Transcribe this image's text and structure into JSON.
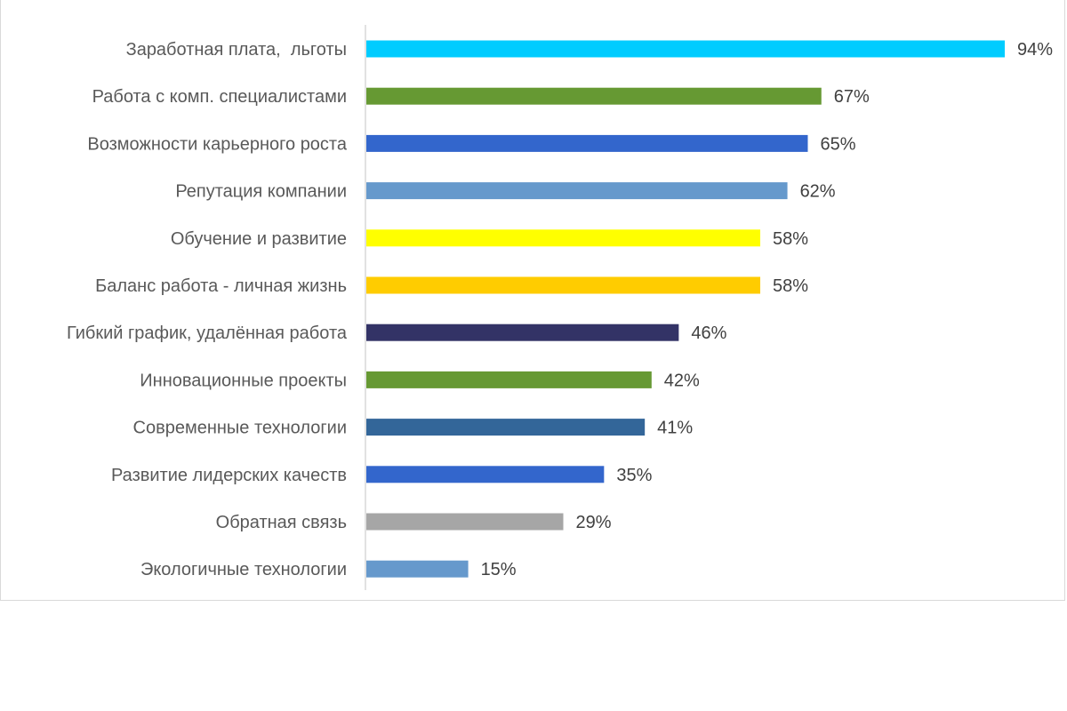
{
  "chart_data": {
    "type": "bar",
    "orientation": "horizontal",
    "categories": [
      "Заработная плата,  льготы",
      "Работа с комп. специалистами",
      "Возможности карьерного роста",
      "Репутация компании",
      "Обучение и развитие",
      "Баланс работа - личная жизнь",
      "Гибкий график, удалённая работа",
      "Инновационные проекты",
      "Современные технологии",
      "Развитие лидерских качеств",
      "Обратная связь",
      "Экологичные технологии"
    ],
    "values": [
      94,
      67,
      65,
      62,
      58,
      58,
      46,
      42,
      41,
      35,
      29,
      15
    ],
    "value_labels": [
      "94%",
      "67%",
      "65%",
      "62%",
      "58%",
      "58%",
      "46%",
      "42%",
      "41%",
      "35%",
      "29%",
      "15%"
    ],
    "colors": [
      "#00CCFF",
      "#669933",
      "#3366CC",
      "#6699CC",
      "#FFFF00",
      "#FFCC00",
      "#333366",
      "#669933",
      "#336699",
      "#3366CC",
      "#A6A6A6",
      "#6699CC"
    ],
    "xlim": [
      0,
      100
    ],
    "grid": false,
    "legend": "none",
    "title": "",
    "xlabel": "",
    "ylabel": ""
  }
}
